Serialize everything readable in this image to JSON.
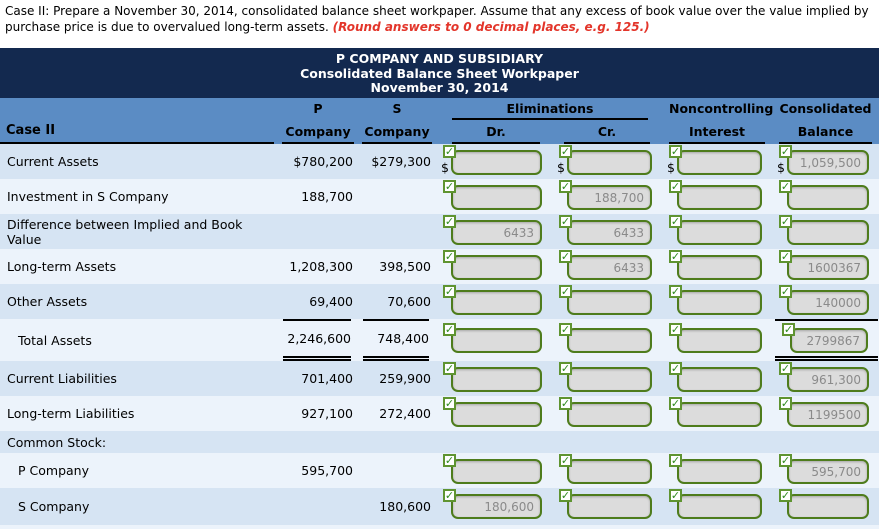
{
  "instructions": {
    "black": "Case II: Prepare a November 30, 2014, consolidated balance sheet workpaper. Assume that any excess of book value over the value implied by purchase price is due to overvalued long-term assets. ",
    "red": "(Round answers to 0 decimal places, e.g. 125.)"
  },
  "title": {
    "line1": "P COMPANY AND SUBSIDIARY",
    "line2": "Consolidated Balance Sheet Workpaper",
    "line3": "November 30, 2014"
  },
  "icons": {
    "check": "✓"
  },
  "colors": {
    "title_bg": "#13294f",
    "header_bg": "#5b8cc4",
    "row_blue": "#d6e4f3",
    "row_light": "#ecf3fb",
    "input_border_green": "#4e7c1c",
    "input_bg": "#dcdcdc",
    "note_red": "#e3352a"
  },
  "table": {
    "currency_symbol": "$",
    "header": {
      "case_label": "Case II",
      "p_line1": "P",
      "p_line2": "Company",
      "s_line1": "S",
      "s_line2": "Company",
      "eliminations": "Eliminations",
      "dr": "Dr.",
      "cr": "Cr.",
      "nci_line1": "Noncontrolling",
      "nci_line2": "Interest",
      "consol_line1": "Consolidated",
      "consol_line2": "Balance"
    },
    "rows": [
      {
        "label": "Current Assets",
        "p": "$780,200",
        "s": "$279,300",
        "dollar": true,
        "inputs": {
          "dr": "",
          "cr": "",
          "nci": "",
          "consol": "1,059,500"
        }
      },
      {
        "label": "Investment in S Company",
        "p": "188,700",
        "s": "",
        "inputs": {
          "dr": "",
          "cr": "188,700",
          "nci": "",
          "consol": ""
        }
      },
      {
        "label": "Difference between Implied and Book Value",
        "p": "",
        "s": "",
        "inputs": {
          "dr": "6433",
          "cr": "6433",
          "nci": "",
          "consol": ""
        }
      },
      {
        "label": "Long-term Assets",
        "p": "1,208,300",
        "s": "398,500",
        "inputs": {
          "dr": "",
          "cr": "6433",
          "nci": "",
          "consol": "1600367"
        }
      },
      {
        "label": "Other Assets",
        "p": "69,400",
        "s": "70,600",
        "inputs": {
          "dr": "",
          "cr": "",
          "nci": "",
          "consol": "140000"
        }
      },
      {
        "label": "Total Assets",
        "indent": true,
        "total": true,
        "p": "2,246,600",
        "s": "748,400",
        "inputs": {
          "dr": "",
          "cr": "",
          "nci": "",
          "consol": "2799867"
        }
      },
      {
        "label": "Current Liabilities",
        "p": "701,400",
        "s": "259,900",
        "inputs": {
          "dr": "",
          "cr": "",
          "nci": "",
          "consol": "961,300"
        }
      },
      {
        "label": "Long-term Liabilities",
        "p": "927,100",
        "s": "272,400",
        "inputs": {
          "dr": "",
          "cr": "",
          "nci": "",
          "consol": "1199500"
        }
      },
      {
        "label": "Common Stock:",
        "section": true,
        "p": "",
        "s": ""
      },
      {
        "label": "P Company",
        "indent": true,
        "p": "595,700",
        "s": "",
        "inputs": {
          "dr": "",
          "cr": "",
          "nci": "",
          "consol": "595,700"
        }
      },
      {
        "label": "S Company",
        "indent": true,
        "p": "",
        "s": "180,600",
        "inputs": {
          "dr": "180,600",
          "cr": "",
          "nci": "",
          "consol": ""
        }
      }
    ]
  }
}
